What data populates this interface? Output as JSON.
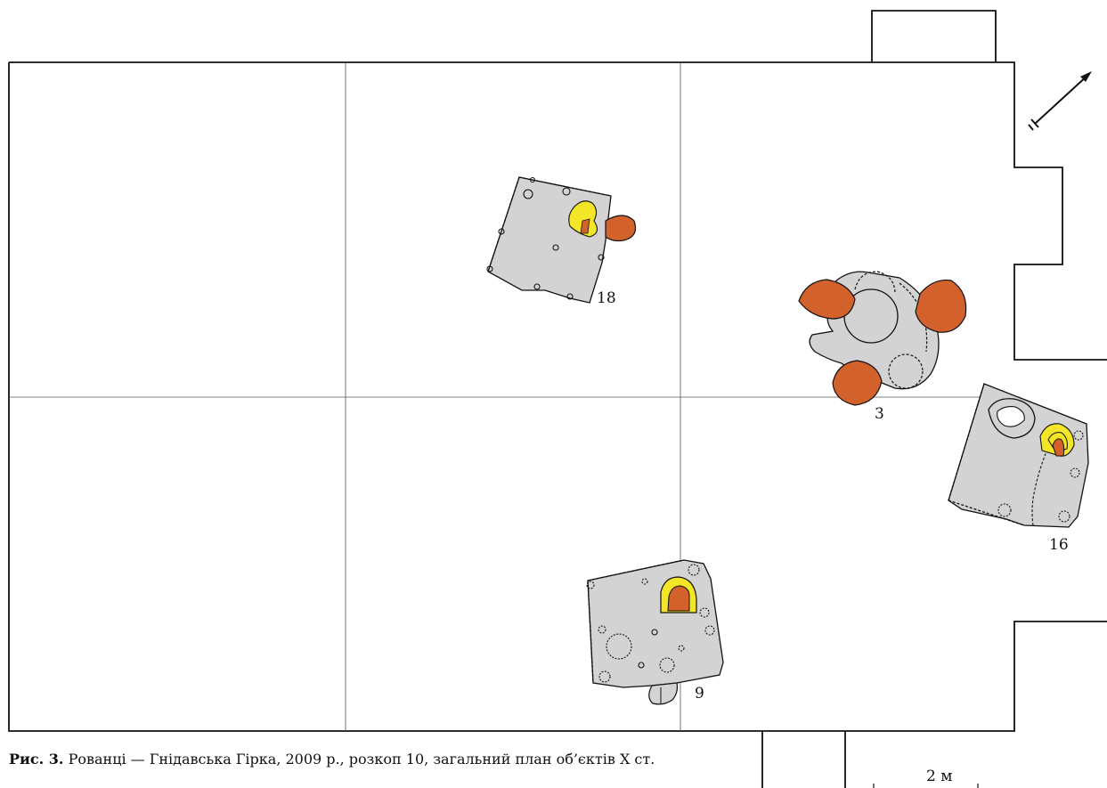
{
  "figure": {
    "caption_label": "Рис. 3.",
    "caption_text": "Рованці — Гнідавська Гірка, 2009 р., розкоп 10, загальний план об’єктів X ст.",
    "features": [
      {
        "id": "18",
        "label": "18"
      },
      {
        "id": "3",
        "label": "3"
      },
      {
        "id": "16",
        "label": "16"
      },
      {
        "id": "9",
        "label": "9"
      }
    ],
    "scale_label": "2 м",
    "north_arrow": "north-arrow-icon"
  },
  "colors": {
    "fill_feature": "#d3d3d3",
    "oven_orange": "#d2612c",
    "hearth_yellow": "#f3e527",
    "line": "#111111"
  }
}
